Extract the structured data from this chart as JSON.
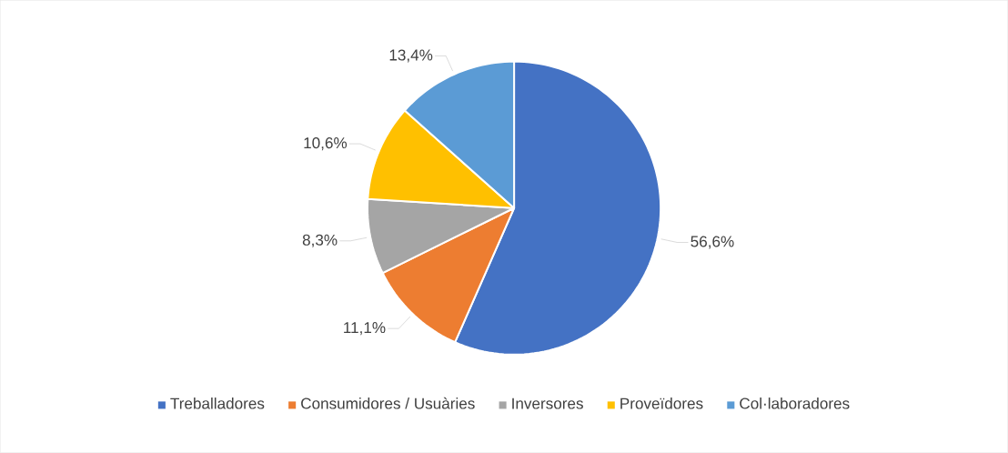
{
  "chart_data": {
    "type": "pie",
    "categories": [
      "Treballadores",
      "Consumidores / Usuàries",
      "Inversores",
      "Proveïdores",
      "Col·laboradores"
    ],
    "values": [
      56.6,
      11.1,
      8.3,
      10.6,
      13.4
    ],
    "value_labels": [
      "56,6%",
      "11,1%",
      "8,3%",
      "10,6%",
      "13,4%"
    ],
    "colors": [
      "#4472c4",
      "#ed7d31",
      "#a5a5a5",
      "#ffc000",
      "#5b9bd5"
    ],
    "legend": "bottom"
  }
}
